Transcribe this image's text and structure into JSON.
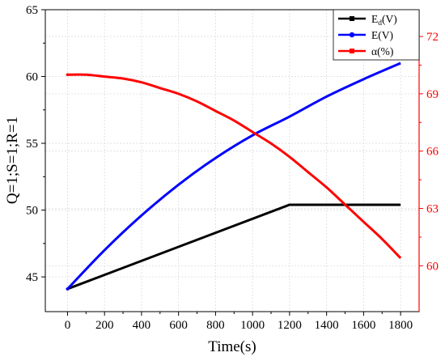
{
  "chart_data": {
    "type": "line",
    "title": "",
    "xlabel": "Time(s)",
    "ylabel": "Q=1;S=1;R=1",
    "y2label": "",
    "xlim": [
      -120,
      1900
    ],
    "xticks": [
      0,
      200,
      400,
      600,
      800,
      1000,
      1200,
      1400,
      1600,
      1800
    ],
    "xtick_labels": [
      "0",
      "200",
      "400",
      "600",
      "800",
      "1000",
      "1200",
      "1400",
      "1600",
      "1800"
    ],
    "ylim": [
      42.4,
      65
    ],
    "yticks": [
      45,
      50,
      55,
      60,
      65
    ],
    "ytick_labels": [
      "45",
      "50",
      "55",
      "60",
      "65"
    ],
    "y2lim": [
      57.6,
      73.4
    ],
    "y2ticks": [
      60,
      63,
      66,
      69,
      72
    ],
    "y2tick_labels": [
      "60",
      "63",
      "66",
      "69",
      "72"
    ],
    "grid": true,
    "legend_position": "top-right",
    "legend": [
      {
        "base": "E",
        "sub": "d",
        "suffix": "(V)",
        "color": "#000000",
        "marker": "square"
      },
      {
        "base": "E(V)",
        "sub": "",
        "suffix": "",
        "color": "#0000ff",
        "marker": "circle"
      },
      {
        "base": "α(%)",
        "sub": "",
        "suffix": "",
        "color": "#ff0000",
        "marker": "square"
      }
    ],
    "series": [
      {
        "name": "Ed(V)",
        "axis": "left",
        "color": "#000000",
        "x": [
          0,
          1200,
          1800
        ],
        "y": [
          44.1,
          50.4,
          50.4
        ]
      },
      {
        "name": "E(V)",
        "axis": "left",
        "color": "#0000ff",
        "x": [
          0,
          200,
          400,
          600,
          800,
          1000,
          1200,
          1400,
          1600,
          1800
        ],
        "y": [
          44.1,
          47.0,
          49.6,
          51.9,
          53.9,
          55.6,
          57.0,
          58.5,
          59.8,
          61.0
        ]
      },
      {
        "name": "α(%)",
        "axis": "right",
        "color": "#ff0000",
        "x": [
          0,
          100,
          200,
          300,
          400,
          500,
          600,
          700,
          800,
          900,
          1000,
          1100,
          1200,
          1300,
          1400,
          1500,
          1600,
          1700,
          1800
        ],
        "y": [
          70.0,
          70.0,
          69.9,
          69.8,
          69.6,
          69.3,
          69.0,
          68.6,
          68.1,
          67.6,
          67.0,
          66.4,
          65.7,
          64.9,
          64.1,
          63.2,
          62.3,
          61.4,
          60.4
        ]
      }
    ]
  }
}
